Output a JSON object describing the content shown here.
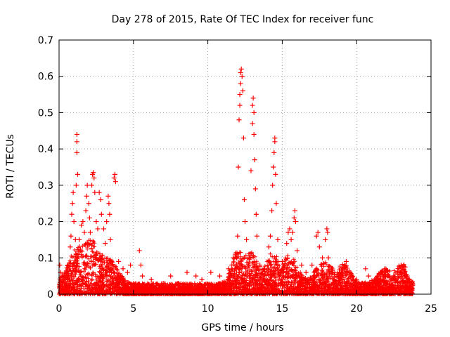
{
  "chart_data": {
    "type": "scatter",
    "title": "Day 278 of 2015, Rate Of TEC Index for receiver func",
    "xlabel": "GPS time / hours",
    "ylabel": "ROTI / TECUs",
    "xlim": [
      0,
      25
    ],
    "ylim": [
      0,
      0.7
    ],
    "x_ticks": [
      "0",
      "5",
      "10",
      "15",
      "20",
      "25"
    ],
    "y_ticks": [
      "0",
      "0.1",
      "0.2",
      "0.3",
      "0.4",
      "0.5",
      "0.6",
      "0.7"
    ],
    "grid": true,
    "marker": "plus",
    "color": "#ff0000",
    "series": [
      {
        "points": [
          [
            0.05,
            0.08
          ],
          [
            0.1,
            0.06
          ],
          [
            0.2,
            0.05
          ],
          [
            0.35,
            0.04
          ],
          [
            0.5,
            0.06
          ],
          [
            0.6,
            0.08
          ],
          [
            0.75,
            0.13
          ],
          [
            0.8,
            0.16
          ],
          [
            0.85,
            0.22
          ],
          [
            0.9,
            0.25
          ],
          [
            0.95,
            0.28
          ],
          [
            1.0,
            0.2
          ],
          [
            1.1,
            0.15
          ],
          [
            1.15,
            0.3
          ],
          [
            1.2,
            0.39
          ],
          [
            1.2,
            0.42
          ],
          [
            1.2,
            0.44
          ],
          [
            1.25,
            0.33
          ],
          [
            1.35,
            0.15
          ],
          [
            1.45,
            0.12
          ],
          [
            1.5,
            0.19
          ],
          [
            1.6,
            0.2
          ],
          [
            1.7,
            0.17
          ],
          [
            1.8,
            0.23
          ],
          [
            1.85,
            0.27
          ],
          [
            1.9,
            0.3
          ],
          [
            2.0,
            0.25
          ],
          [
            2.05,
            0.21
          ],
          [
            2.1,
            0.17
          ],
          [
            2.2,
            0.3
          ],
          [
            2.25,
            0.33
          ],
          [
            2.3,
            0.335
          ],
          [
            2.35,
            0.32
          ],
          [
            2.4,
            0.28
          ],
          [
            2.5,
            0.2
          ],
          [
            2.6,
            0.18
          ],
          [
            2.7,
            0.28
          ],
          [
            2.8,
            0.26
          ],
          [
            2.85,
            0.22
          ],
          [
            3.0,
            0.18
          ],
          [
            3.1,
            0.14
          ],
          [
            3.2,
            0.2
          ],
          [
            3.3,
            0.27
          ],
          [
            3.35,
            0.25
          ],
          [
            3.4,
            0.22
          ],
          [
            3.45,
            0.15
          ],
          [
            3.55,
            0.08
          ],
          [
            3.7,
            0.32
          ],
          [
            3.75,
            0.33
          ],
          [
            3.8,
            0.31
          ],
          [
            4.0,
            0.09
          ],
          [
            4.3,
            0.07
          ],
          [
            4.6,
            0.06
          ],
          [
            4.8,
            0.08
          ],
          [
            5.4,
            0.12
          ],
          [
            5.5,
            0.08
          ],
          [
            5.6,
            0.05
          ],
          [
            6.2,
            0.04
          ],
          [
            7.0,
            0.03
          ],
          [
            7.5,
            0.05
          ],
          [
            8.0,
            0.03
          ],
          [
            8.6,
            0.06
          ],
          [
            9.2,
            0.05
          ],
          [
            9.6,
            0.04
          ],
          [
            10.2,
            0.06
          ],
          [
            10.8,
            0.05
          ],
          [
            11.4,
            0.07
          ],
          [
            11.7,
            0.1
          ],
          [
            11.85,
            0.11
          ],
          [
            12.0,
            0.16
          ],
          [
            12.05,
            0.35
          ],
          [
            12.1,
            0.48
          ],
          [
            12.15,
            0.52
          ],
          [
            12.15,
            0.55
          ],
          [
            12.2,
            0.58
          ],
          [
            12.2,
            0.61
          ],
          [
            12.25,
            0.62
          ],
          [
            12.3,
            0.6
          ],
          [
            12.35,
            0.56
          ],
          [
            12.4,
            0.43
          ],
          [
            12.45,
            0.26
          ],
          [
            12.5,
            0.2
          ],
          [
            12.6,
            0.15
          ],
          [
            12.8,
            0.1
          ],
          [
            12.9,
            0.34
          ],
          [
            13.0,
            0.47
          ],
          [
            13.0,
            0.52
          ],
          [
            13.05,
            0.54
          ],
          [
            13.1,
            0.5
          ],
          [
            13.1,
            0.44
          ],
          [
            13.15,
            0.37
          ],
          [
            13.2,
            0.29
          ],
          [
            13.25,
            0.22
          ],
          [
            13.3,
            0.16
          ],
          [
            13.5,
            0.08
          ],
          [
            13.8,
            0.07
          ],
          [
            14.1,
            0.13
          ],
          [
            14.2,
            0.16
          ],
          [
            14.3,
            0.23
          ],
          [
            14.35,
            0.3
          ],
          [
            14.4,
            0.35
          ],
          [
            14.45,
            0.39
          ],
          [
            14.5,
            0.42
          ],
          [
            14.5,
            0.43
          ],
          [
            14.55,
            0.33
          ],
          [
            14.6,
            0.25
          ],
          [
            14.7,
            0.15
          ],
          [
            15.0,
            0.09
          ],
          [
            15.2,
            0.08
          ],
          [
            15.3,
            0.14
          ],
          [
            15.4,
            0.17
          ],
          [
            15.5,
            0.18
          ],
          [
            15.6,
            0.15
          ],
          [
            15.7,
            0.17
          ],
          [
            15.8,
            0.21
          ],
          [
            15.85,
            0.23
          ],
          [
            15.9,
            0.2
          ],
          [
            16.0,
            0.12
          ],
          [
            16.3,
            0.08
          ],
          [
            16.6,
            0.06
          ],
          [
            17.0,
            0.08
          ],
          [
            17.3,
            0.16
          ],
          [
            17.4,
            0.17
          ],
          [
            17.5,
            0.13
          ],
          [
            17.7,
            0.1
          ],
          [
            17.9,
            0.15
          ],
          [
            18.0,
            0.18
          ],
          [
            18.05,
            0.17
          ],
          [
            18.1,
            0.1
          ],
          [
            18.4,
            0.06
          ],
          [
            18.8,
            0.05
          ],
          [
            19.2,
            0.08
          ],
          [
            19.3,
            0.09
          ],
          [
            19.5,
            0.06
          ],
          [
            20.0,
            0.04
          ],
          [
            20.6,
            0.07
          ],
          [
            20.8,
            0.05
          ],
          [
            21.2,
            0.04
          ],
          [
            21.6,
            0.06
          ],
          [
            21.9,
            0.07
          ],
          [
            22.2,
            0.05
          ],
          [
            22.6,
            0.04
          ],
          [
            23.0,
            0.08
          ],
          [
            23.2,
            0.06
          ],
          [
            23.5,
            0.04
          ],
          [
            23.75,
            0.03
          ]
        ]
      }
    ]
  }
}
